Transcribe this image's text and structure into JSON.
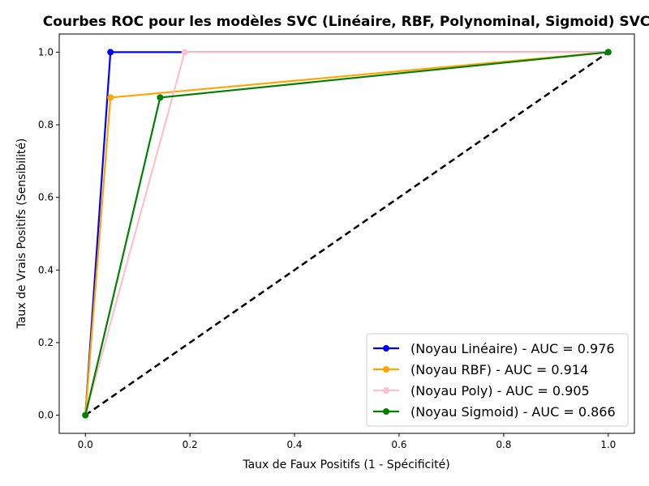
{
  "chart_data": {
    "type": "line",
    "title": "Courbes ROC pour les modèles SVC (Linéaire, RBF, Polynominal, Sigmoid) SVC",
    "xlabel": "Taux de Faux Positifs (1 - Spécificité)",
    "ylabel": "Taux de Vrais Positifs (Sensibilité)",
    "xlim": [
      -0.05,
      1.05
    ],
    "ylim": [
      -0.05,
      1.05
    ],
    "xticks": [
      0.0,
      0.2,
      0.4,
      0.6,
      0.8,
      1.0
    ],
    "yticks": [
      0.0,
      0.2,
      0.4,
      0.6,
      0.8,
      1.0
    ],
    "xtick_labels": [
      "0.0",
      "0.2",
      "0.4",
      "0.6",
      "0.8",
      "1.0"
    ],
    "ytick_labels": [
      "0.0",
      "0.2",
      "0.4",
      "0.6",
      "0.8",
      "1.0"
    ],
    "grid": false,
    "legend_position": "lower-right",
    "series": [
      {
        "name": "(Noyau Linéaire) - AUC = 0.976",
        "color": "#0000ff",
        "x": [
          0.0,
          0.048,
          1.0
        ],
        "y": [
          0.0,
          1.0,
          1.0
        ],
        "marker": "circle"
      },
      {
        "name": "(Noyau RBF) - AUC = 0.914",
        "color": "#ffa500",
        "x": [
          0.0,
          0.048,
          1.0
        ],
        "y": [
          0.0,
          0.875,
          1.0
        ],
        "marker": "circle"
      },
      {
        "name": "(Noyau Poly) - AUC = 0.905",
        "color": "#ffc0cb",
        "x": [
          0.0,
          0.19,
          1.0
        ],
        "y": [
          0.0,
          1.0,
          1.0
        ],
        "marker": "circle"
      },
      {
        "name": "(Noyau Sigmoid) - AUC = 0.866",
        "color": "#008000",
        "x": [
          0.0,
          0.143,
          1.0
        ],
        "y": [
          0.0,
          0.875,
          1.0
        ],
        "marker": "circle"
      }
    ],
    "reference_line": {
      "x": [
        0.0,
        1.0
      ],
      "y": [
        0.0,
        1.0
      ],
      "color": "#000000",
      "style": "dashed"
    }
  }
}
